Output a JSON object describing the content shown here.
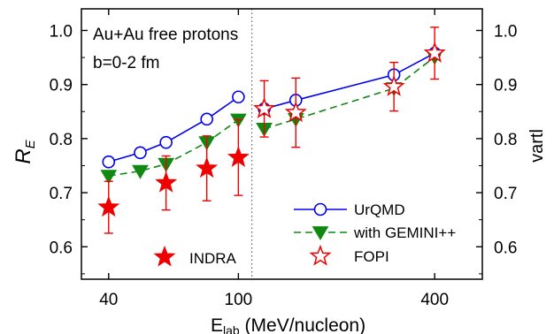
{
  "chart_data": {
    "type": "line",
    "x_scale": "log",
    "xlim": [
      33,
      560
    ],
    "ylim": [
      0.54,
      1.04
    ],
    "x_ticks": [
      40,
      100,
      400
    ],
    "x_tick_labels": [
      "40",
      "100",
      "400"
    ],
    "y_ticks": [
      0.6,
      0.7,
      0.8,
      0.9,
      1.0
    ],
    "y_tick_labels": [
      "0.6",
      "0.7",
      "0.8",
      "0.9",
      "1.0"
    ],
    "y2_tick_labels": [
      "0.6",
      "0.7",
      "0.8",
      "0.9",
      "1.0"
    ],
    "xlabel_main": "E",
    "xlabel_sub": "lab",
    "xlabel_tail": " (MeV/nucleon)",
    "ylabel_main": "R",
    "ylabel_sub": "E",
    "y2label": "vartl",
    "divider_x": 110,
    "annotations": [
      "Au+Au  free protons",
      "b=0-2 fm"
    ],
    "series": [
      {
        "name": "UrQMD",
        "style": "line-open-circle",
        "color": "#0000ee",
        "segments": [
          {
            "x": [
              40,
              50,
              60,
              80,
              100
            ],
            "y": [
              0.757,
              0.774,
              0.793,
              0.836,
              0.877
            ]
          },
          {
            "x": [
              120,
              150,
              300,
              400
            ],
            "y": [
              0.855,
              0.871,
              0.918,
              0.958
            ]
          }
        ]
      },
      {
        "name": "with GEMINI++",
        "style": "dashed-down-triangle",
        "color": "#118811",
        "segments": [
          {
            "x": [
              40,
              50,
              60,
              80,
              100
            ],
            "y": [
              0.731,
              0.74,
              0.753,
              0.793,
              0.835
            ]
          },
          {
            "x": [
              120,
              150,
              300,
              400
            ],
            "y": [
              0.818,
              0.836,
              0.893,
              0.951
            ]
          }
        ]
      },
      {
        "name": "INDRA",
        "style": "filled-star",
        "color": "#ee0000",
        "x": [
          40,
          60,
          80,
          100
        ],
        "y": [
          0.673,
          0.718,
          0.745,
          0.765
        ],
        "err": [
          0.048,
          0.05,
          0.06,
          0.07
        ]
      },
      {
        "name": "FOPI",
        "style": "open-star",
        "color": "#ee0000",
        "x": [
          120,
          150,
          300,
          400
        ],
        "y": [
          0.855,
          0.848,
          0.896,
          0.958
        ],
        "err": [
          0.052,
          0.064,
          0.045,
          0.048
        ]
      }
    ],
    "legend": {
      "position": "lower-right",
      "entries": [
        "UrQMD",
        "with GEMINI++",
        "FOPI"
      ],
      "inline_entries": [
        "INDRA"
      ]
    }
  }
}
